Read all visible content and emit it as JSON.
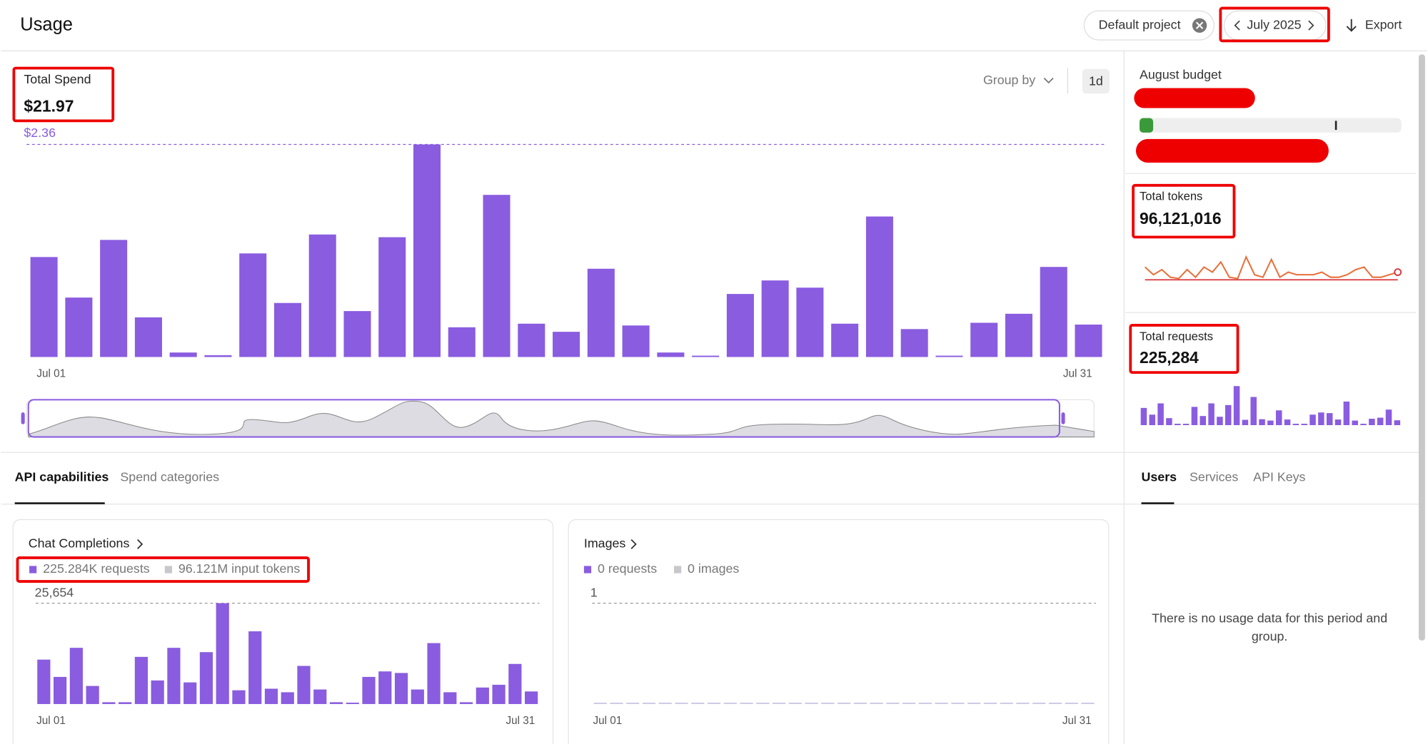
{
  "header": {
    "title": "Usage",
    "project": "Default project",
    "month": "July 2025",
    "export": "Export"
  },
  "controls": {
    "group_by": "Group by",
    "interval": "1d"
  },
  "sidebar": {
    "budget_label": "August budget"
  },
  "tabs": {
    "left": [
      "API capabilities",
      "Spend categories"
    ],
    "right": [
      "Users",
      "Services",
      "API Keys"
    ]
  },
  "empty_message": "There is no usage data for this period and group.",
  "chart_data": [
    {
      "type": "bar",
      "title": "Total Spend",
      "subtitle": "$21.97",
      "color": "#8a5ce0",
      "categories": [
        "Jul 01",
        null,
        null,
        null,
        null,
        null,
        null,
        null,
        null,
        null,
        null,
        null,
        null,
        null,
        null,
        null,
        null,
        null,
        null,
        null,
        null,
        null,
        null,
        null,
        null,
        null,
        null,
        null,
        null,
        null,
        "Jul 31"
      ],
      "values": [
        1.11,
        0.66,
        1.3,
        0.44,
        0.05,
        0.02,
        1.15,
        0.6,
        1.36,
        0.51,
        1.33,
        2.36,
        0.33,
        1.8,
        0.37,
        0.28,
        0.98,
        0.35,
        0.05,
        0.01,
        0.7,
        0.85,
        0.77,
        0.37,
        1.56,
        0.31,
        0.01,
        0.38,
        0.48,
        1.0,
        0.36
      ],
      "ylim": [
        0,
        2.36
      ],
      "yticks": [
        {
          "value": 2.36,
          "label": "$2.36"
        }
      ],
      "grid": true
    },
    {
      "type": "bar",
      "title": "Chat Completions",
      "color": "#8a5ce0",
      "legend": [
        {
          "name": "225.284K requests",
          "color": "#8a5ce0"
        },
        {
          "name": "96.121M input tokens",
          "color": "#c8c8cc"
        }
      ],
      "categories": [
        "Jul 01",
        null,
        null,
        null,
        null,
        null,
        null,
        null,
        null,
        null,
        null,
        null,
        null,
        null,
        null,
        null,
        null,
        null,
        null,
        null,
        null,
        null,
        null,
        null,
        null,
        null,
        null,
        null,
        null,
        null,
        "Jul 31"
      ],
      "values": [
        11300,
        6900,
        14300,
        4600,
        460,
        460,
        12000,
        6000,
        14300,
        5500,
        13200,
        25654,
        3500,
        18500,
        3900,
        3000,
        9700,
        3700,
        460,
        230,
        6900,
        8300,
        7900,
        3700,
        15500,
        3000,
        460,
        4200,
        4900,
        10200,
        3200
      ],
      "ylim": [
        0,
        25654
      ],
      "yticks": [
        {
          "value": 25654,
          "label": "25,654"
        }
      ],
      "grid": true
    },
    {
      "type": "bar",
      "title": "Images",
      "color": "#cdc8e4",
      "legend": [
        {
          "name": "0 requests",
          "color": "#8a5ce0"
        },
        {
          "name": "0 images",
          "color": "#c8c8cc"
        }
      ],
      "categories": [
        "Jul 01",
        null,
        null,
        null,
        null,
        null,
        null,
        null,
        null,
        null,
        null,
        null,
        null,
        null,
        null,
        null,
        null,
        null,
        null,
        null,
        null,
        null,
        null,
        null,
        null,
        null,
        null,
        null,
        null,
        null,
        "Jul 31"
      ],
      "values": [
        0,
        0,
        0,
        0,
        0,
        0,
        0,
        0,
        0,
        0,
        0,
        0,
        0,
        0,
        0,
        0,
        0,
        0,
        0,
        0,
        0,
        0,
        0,
        0,
        0,
        0,
        0,
        0,
        0,
        0,
        0
      ],
      "ylim": [
        0,
        1
      ],
      "yticks": [
        1
      ],
      "grid": true
    },
    {
      "type": "line",
      "title": "Total tokens",
      "subtitle": "96,121,016",
      "color": "#e8703a",
      "values": [
        5,
        2,
        4,
        1,
        0.5,
        4,
        1,
        5,
        3,
        7,
        1,
        0.5,
        9,
        2,
        1,
        8,
        1,
        3,
        2,
        2,
        2,
        3,
        1,
        1,
        2,
        4,
        5,
        1,
        1,
        2,
        3
      ],
      "ylim": [
        0,
        10
      ]
    },
    {
      "type": "bar",
      "title": "Total requests",
      "subtitle": "225,284",
      "color": "#8a5ce0",
      "values": [
        11300,
        6900,
        14300,
        4600,
        460,
        460,
        12000,
        6000,
        14300,
        5500,
        13200,
        25654,
        3500,
        18500,
        3900,
        3000,
        9700,
        3700,
        460,
        230,
        6900,
        8300,
        7900,
        3700,
        15500,
        3000,
        460,
        4200,
        4900,
        10200,
        3200
      ],
      "ylim": [
        0,
        25654
      ]
    }
  ]
}
